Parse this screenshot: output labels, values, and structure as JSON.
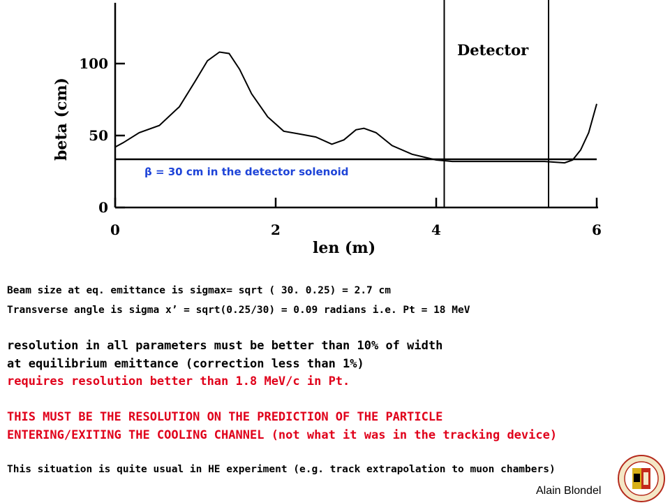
{
  "chart_data": {
    "type": "line",
    "xlabel": "len  (m)",
    "ylabel": "beta (cm)",
    "xlim": [
      0,
      6
    ],
    "ylim": [
      0,
      135
    ],
    "x_ticks": [
      0,
      2,
      4,
      6
    ],
    "y_ticks": [
      0,
      50,
      100
    ],
    "x_tick_labels": [
      "0",
      "2",
      "4",
      "6"
    ],
    "y_tick_labels": [
      "0",
      "50",
      "100"
    ],
    "grid": false,
    "series": [
      {
        "x": [
          0,
          0.1,
          0.3,
          0.55,
          0.8,
          1.0,
          1.15,
          1.3,
          1.42,
          1.55,
          1.7,
          1.9,
          2.1,
          2.3,
          2.5,
          2.7,
          2.85,
          3.0,
          3.1,
          3.25,
          3.45,
          3.7,
          4.0,
          4.2,
          4.6,
          5.0,
          5.35,
          5.6,
          5.7,
          5.8,
          5.9,
          6.0
        ],
        "y": [
          42,
          45,
          52,
          57,
          70,
          88,
          102,
          108,
          107,
          96,
          79,
          63,
          53,
          51,
          49,
          44,
          47,
          54,
          55,
          52,
          43,
          37,
          33,
          32,
          32,
          32,
          32,
          31,
          33,
          40,
          52,
          72
        ]
      },
      {
        "x": [
          0,
          6
        ],
        "y": [
          33.5,
          33.5
        ]
      }
    ],
    "vertical_lines_x": [
      4.1,
      5.4
    ],
    "annotations": [
      {
        "text": "Detector"
      },
      {
        "text": "β = 30 cm in the detector solenoid"
      }
    ]
  },
  "text": {
    "line1": "Beam size at eq. emittance is sigmax= sqrt ( 30. 0.25) = 2.7 cm",
    "line2": "Transverse angle is sigma x’ = sqrt(0.25/30) = 0.09 radians i.e. Pt = 18 MeV",
    "line3": "resolution in all parameters must be better than 10% of width",
    "line4": "at equilibrium emittance (correction less than 1%)",
    "line5": "requires resolution better than 1.8 MeV/c in Pt.",
    "line6": "THIS MUST BE THE RESOLUTION ON THE PREDICTION OF THE PARTICLE",
    "line7": "ENTERING/EXITING THE COOLING CHANNEL (not what it was in the tracking device)",
    "line8": "This situation is quite usual in HE experiment (e.g. track extrapolation to muon chambers)",
    "author": "Alain Blondel"
  },
  "colors": {
    "red_text": "#e0001a",
    "blue_annotation": "#1e44d8",
    "ink": "#000000"
  },
  "logo": {
    "icon": "university-seal-icon"
  }
}
